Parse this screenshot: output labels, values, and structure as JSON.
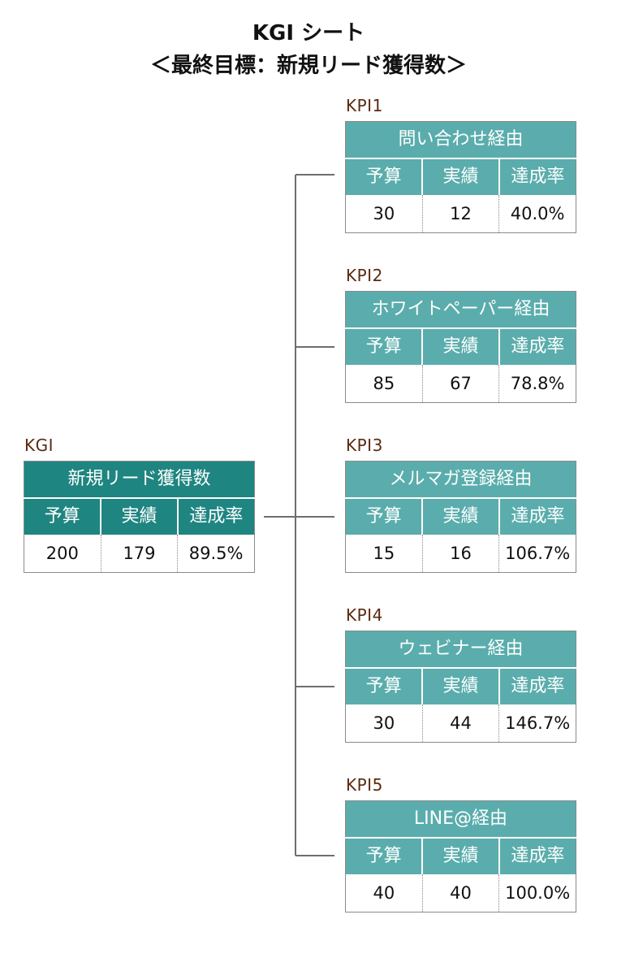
{
  "title": {
    "line1": "KGI シート",
    "line2": "＜最終目標：新規リード獲得数＞"
  },
  "columns": [
    "予算",
    "実績",
    "達成率"
  ],
  "kgi": {
    "label": "KGI",
    "name": "新規リード獲得数",
    "budget": "200",
    "actual": "179",
    "rate": "89.5%"
  },
  "kpis": [
    {
      "label": "KPI1",
      "name": "問い合わせ経由",
      "budget": "30",
      "actual": "12",
      "rate": "40.0%"
    },
    {
      "label": "KPI2",
      "name": "ホワイトペーパー経由",
      "budget": "85",
      "actual": "67",
      "rate": "78.8%"
    },
    {
      "label": "KPI3",
      "name": "メルマガ登録経由",
      "budget": "15",
      "actual": "16",
      "rate": "106.7%"
    },
    {
      "label": "KPI4",
      "name": "ウェビナー経由",
      "budget": "30",
      "actual": "44",
      "rate": "146.7%"
    },
    {
      "label": "KPI5",
      "name": "LINE@経由",
      "budget": "40",
      "actual": "40",
      "rate": "100.0%"
    }
  ],
  "colors": {
    "kgi_header": "#1f8580",
    "kpi_header": "#5aadac",
    "label_text": "#5a2a10",
    "connector": "#6e6e6e"
  }
}
